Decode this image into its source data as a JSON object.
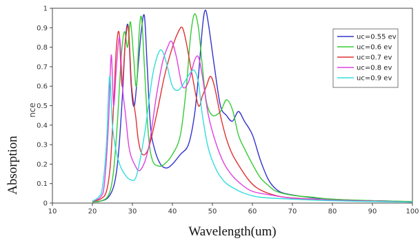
{
  "chart_data": {
    "type": "line",
    "xlabel": "Wavelength(um)",
    "ylabel": "Absorption",
    "ylabel_fragment": "nce",
    "xlim": [
      10,
      100
    ],
    "ylim": [
      0,
      1
    ],
    "x_ticks": [
      "10",
      "20",
      "30",
      "40",
      "50",
      "60",
      "70",
      "80",
      "90",
      "100"
    ],
    "y_ticks": [
      "0",
      "0.1",
      "0.2",
      "0.3",
      "0.4",
      "0.5",
      "0.6",
      "0.7",
      "0.8",
      "0.9",
      "1"
    ],
    "legend_position": "top-right",
    "series": [
      {
        "name": "uc=0.55 ev",
        "color": "#3333cc",
        "points": [
          [
            20,
            0.005
          ],
          [
            22,
            0.01
          ],
          [
            24,
            0.03
          ],
          [
            25.5,
            0.1
          ],
          [
            26.5,
            0.25
          ],
          [
            27.5,
            0.55
          ],
          [
            28.3,
            0.85
          ],
          [
            29,
            0.9
          ],
          [
            29.7,
            0.6
          ],
          [
            30.5,
            0.5
          ],
          [
            31.5,
            0.72
          ],
          [
            32.2,
            0.88
          ],
          [
            33,
            0.96
          ],
          [
            33.7,
            0.7
          ],
          [
            34.5,
            0.4
          ],
          [
            35.5,
            0.28
          ],
          [
            37,
            0.2
          ],
          [
            38.5,
            0.18
          ],
          [
            40,
            0.2
          ],
          [
            42,
            0.25
          ],
          [
            44,
            0.3
          ],
          [
            45.5,
            0.45
          ],
          [
            46.5,
            0.65
          ],
          [
            47.5,
            0.9
          ],
          [
            48.2,
            0.99
          ],
          [
            49,
            0.92
          ],
          [
            50.5,
            0.7
          ],
          [
            52,
            0.5
          ],
          [
            53.5,
            0.45
          ],
          [
            55,
            0.42
          ],
          [
            56.5,
            0.47
          ],
          [
            58,
            0.42
          ],
          [
            60,
            0.35
          ],
          [
            62,
            0.22
          ],
          [
            64,
            0.12
          ],
          [
            66,
            0.07
          ],
          [
            68,
            0.05
          ],
          [
            72,
            0.035
          ],
          [
            76,
            0.025
          ],
          [
            80,
            0.02
          ],
          [
            85,
            0.015
          ],
          [
            90,
            0.012
          ],
          [
            95,
            0.01
          ],
          [
            100,
            0.005
          ]
        ]
      },
      {
        "name": "uc=0.6 ev",
        "color": "#33cc33",
        "points": [
          [
            20,
            0.005
          ],
          [
            22,
            0.01
          ],
          [
            24,
            0.04
          ],
          [
            25.2,
            0.15
          ],
          [
            26.2,
            0.4
          ],
          [
            27.2,
            0.75
          ],
          [
            28,
            0.88
          ],
          [
            28.8,
            0.8
          ],
          [
            29.5,
            0.93
          ],
          [
            30.3,
            0.75
          ],
          [
            31,
            0.6
          ],
          [
            31.7,
            0.88
          ],
          [
            32.3,
            0.95
          ],
          [
            33,
            0.7
          ],
          [
            34,
            0.35
          ],
          [
            35,
            0.22
          ],
          [
            36.5,
            0.19
          ],
          [
            38,
            0.2
          ],
          [
            40,
            0.25
          ],
          [
            42,
            0.35
          ],
          [
            43.5,
            0.6
          ],
          [
            44.5,
            0.85
          ],
          [
            45.5,
            0.97
          ],
          [
            46.5,
            0.9
          ],
          [
            47.5,
            0.7
          ],
          [
            48.5,
            0.52
          ],
          [
            50,
            0.45
          ],
          [
            52,
            0.47
          ],
          [
            53.5,
            0.53
          ],
          [
            55,
            0.48
          ],
          [
            56.5,
            0.35
          ],
          [
            58,
            0.28
          ],
          [
            60,
            0.2
          ],
          [
            62,
            0.13
          ],
          [
            64,
            0.09
          ],
          [
            66,
            0.06
          ],
          [
            70,
            0.04
          ],
          [
            75,
            0.03
          ],
          [
            80,
            0.02
          ],
          [
            90,
            0.012
          ],
          [
            100,
            0.008
          ]
        ]
      },
      {
        "name": "uc=0.7 ev",
        "color": "#e03030",
        "points": [
          [
            20,
            0.01
          ],
          [
            22,
            0.02
          ],
          [
            23.5,
            0.06
          ],
          [
            24.5,
            0.2
          ],
          [
            25.3,
            0.5
          ],
          [
            26,
            0.8
          ],
          [
            26.7,
            0.87
          ],
          [
            27.4,
            0.6
          ],
          [
            28.2,
            0.82
          ],
          [
            29,
            0.9
          ],
          [
            29.8,
            0.6
          ],
          [
            30.8,
            0.45
          ],
          [
            31.5,
            0.32
          ],
          [
            32.5,
            0.25
          ],
          [
            34,
            0.28
          ],
          [
            36,
            0.45
          ],
          [
            38,
            0.65
          ],
          [
            40,
            0.8
          ],
          [
            41.5,
            0.88
          ],
          [
            42.5,
            0.9
          ],
          [
            43.5,
            0.82
          ],
          [
            45,
            0.65
          ],
          [
            46.5,
            0.5
          ],
          [
            47.5,
            0.55
          ],
          [
            48.5,
            0.6
          ],
          [
            49.5,
            0.65
          ],
          [
            50.5,
            0.6
          ],
          [
            52,
            0.45
          ],
          [
            53.5,
            0.33
          ],
          [
            55,
            0.25
          ],
          [
            57,
            0.18
          ],
          [
            59,
            0.12
          ],
          [
            61,
            0.08
          ],
          [
            64,
            0.05
          ],
          [
            68,
            0.03
          ],
          [
            75,
            0.02
          ],
          [
            80,
            0.015
          ],
          [
            90,
            0.01
          ],
          [
            100,
            0.005
          ]
        ]
      },
      {
        "name": "uc=0.8 ev",
        "color": "#e040e0",
        "points": [
          [
            20,
            0.01
          ],
          [
            22,
            0.03
          ],
          [
            23,
            0.1
          ],
          [
            24,
            0.4
          ],
          [
            24.7,
            0.76
          ],
          [
            25.3,
            0.5
          ],
          [
            26,
            0.7
          ],
          [
            26.8,
            0.85
          ],
          [
            27.5,
            0.6
          ],
          [
            28.3,
            0.45
          ],
          [
            29.2,
            0.28
          ],
          [
            30.5,
            0.2
          ],
          [
            32,
            0.17
          ],
          [
            34,
            0.28
          ],
          [
            36,
            0.55
          ],
          [
            37.5,
            0.72
          ],
          [
            38.8,
            0.8
          ],
          [
            39.8,
            0.83
          ],
          [
            41,
            0.75
          ],
          [
            42.5,
            0.6
          ],
          [
            44,
            0.62
          ],
          [
            45.5,
            0.73
          ],
          [
            46.5,
            0.75
          ],
          [
            47.5,
            0.65
          ],
          [
            49,
            0.45
          ],
          [
            51,
            0.3
          ],
          [
            53,
            0.2
          ],
          [
            55,
            0.14
          ],
          [
            57,
            0.1
          ],
          [
            60,
            0.06
          ],
          [
            65,
            0.04
          ],
          [
            70,
            0.025
          ],
          [
            80,
            0.015
          ],
          [
            90,
            0.01
          ],
          [
            100,
            0.005
          ]
        ]
      },
      {
        "name": "uc=0.9 ev",
        "color": "#33dddd",
        "points": [
          [
            20,
            0.01
          ],
          [
            21.5,
            0.03
          ],
          [
            22.5,
            0.08
          ],
          [
            23.5,
            0.3
          ],
          [
            24.3,
            0.65
          ],
          [
            25,
            0.4
          ],
          [
            25.8,
            0.28
          ],
          [
            26.8,
            0.2
          ],
          [
            28,
            0.15
          ],
          [
            29.5,
            0.12
          ],
          [
            31,
            0.14
          ],
          [
            33,
            0.35
          ],
          [
            35,
            0.65
          ],
          [
            36.5,
            0.77
          ],
          [
            37.5,
            0.78
          ],
          [
            38.5,
            0.72
          ],
          [
            40,
            0.6
          ],
          [
            41.5,
            0.58
          ],
          [
            43,
            0.62
          ],
          [
            44.5,
            0.67
          ],
          [
            45.5,
            0.68
          ],
          [
            46.5,
            0.62
          ],
          [
            47.5,
            0.45
          ],
          [
            49,
            0.28
          ],
          [
            51,
            0.17
          ],
          [
            53,
            0.11
          ],
          [
            55,
            0.08
          ],
          [
            58,
            0.05
          ],
          [
            62,
            0.03
          ],
          [
            70,
            0.02
          ],
          [
            80,
            0.012
          ],
          [
            90,
            0.008
          ],
          [
            100,
            0.005
          ]
        ]
      }
    ]
  }
}
